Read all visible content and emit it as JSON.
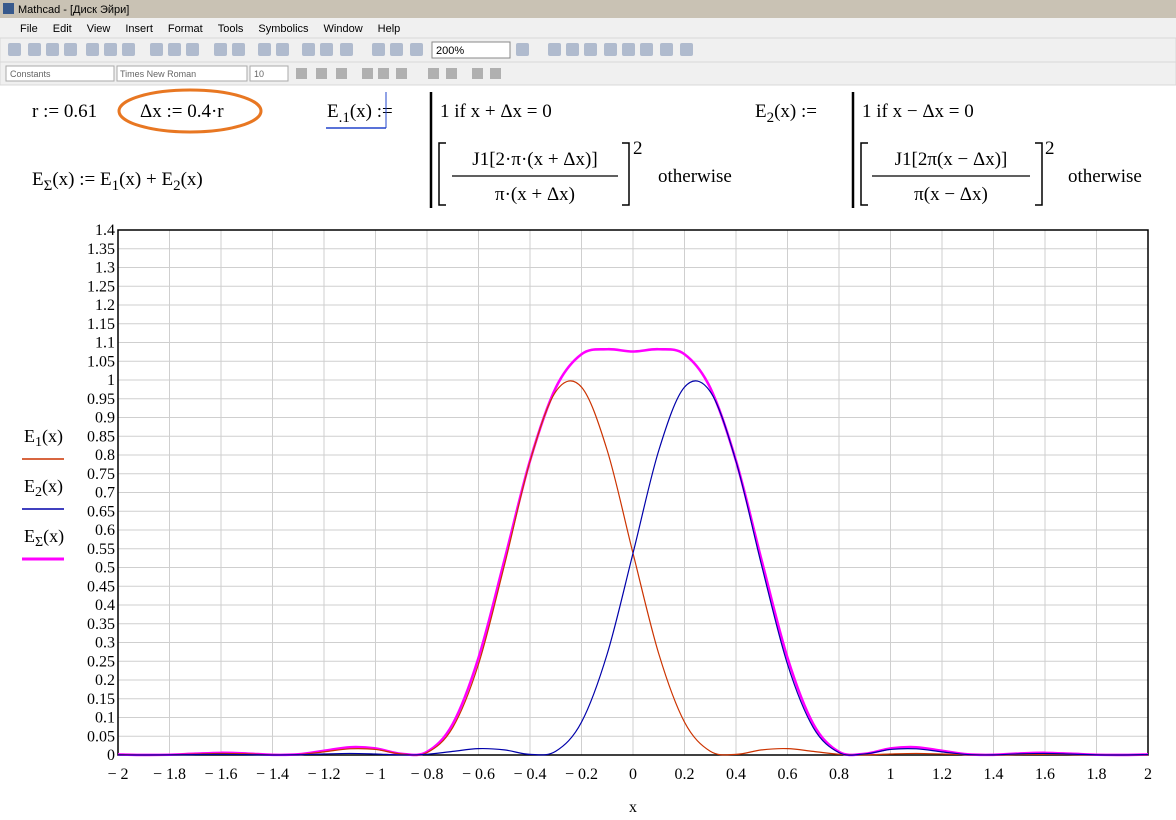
{
  "window": {
    "title": "Mathcad - [Диск Эйри]",
    "menu": [
      "File",
      "Edit",
      "View",
      "Insert",
      "Format",
      "Tools",
      "Symbolics",
      "Window",
      "Help"
    ],
    "zoom": "200%",
    "style": "Constants",
    "font": "Times New Roman",
    "size": "10"
  },
  "worksheet": {
    "r_def": "r := 0.61",
    "dx_def": "Δx := 0.4·r",
    "esum_def": [
      "E",
      "Σ",
      "(x) := E",
      "1",
      "(x) + E",
      "2",
      "(x)"
    ],
    "e1_def": [
      "E",
      ".1",
      "(x) :="
    ],
    "e1_case": "1  if  x + Δx = 0",
    "e1_num": "J1[2·π·(x + Δx)]",
    "e1_den": "π·(x + Δx)",
    "e1_exp": "2",
    "e1_otherwise": "otherwise",
    "e2_def": [
      "E",
      "2",
      "(x) :="
    ],
    "e2_case": "1  if  x − Δx = 0",
    "e2_num": "J1[2π(x − Δx)]",
    "e2_den": "π(x − Δx)",
    "e2_exp": "2",
    "e2_otherwise": "otherwise"
  },
  "chart_data": {
    "type": "line",
    "x_label": "x",
    "x": [
      -2,
      -1.9,
      -1.8,
      -1.7,
      -1.6,
      -1.5,
      -1.4,
      -1.3,
      -1.2,
      -1.1,
      -1,
      -0.9,
      -0.8,
      -0.7,
      -0.6,
      -0.5,
      -0.4,
      -0.3,
      -0.2,
      -0.1,
      0,
      0.1,
      0.2,
      0.3,
      0.4,
      0.5,
      0.6,
      0.7,
      0.8,
      0.9,
      1,
      1.1,
      1.2,
      1.3,
      1.4,
      1.5,
      1.6,
      1.7,
      1.8,
      1.9,
      2
    ],
    "series": [
      {
        "name": "E1(x)",
        "color": "#cc3300",
        "values": [
          0.0011,
          0.0001,
          0.0004,
          0.0024,
          0.0041,
          0.003,
          0.0004,
          0.0012,
          0.0084,
          0.0165,
          0.0148,
          0.0029,
          0.0064,
          0.0732,
          0.242,
          0.504,
          0.783,
          0.969,
          0.981,
          0.812,
          0.538,
          0.27,
          0.0877,
          0.0101,
          0.0017,
          0.0137,
          0.017,
          0.0096,
          0.0018,
          0.0002,
          0.0027,
          0.0042,
          0.0027,
          0.0006,
          0.0001,
          0.001,
          0.0016,
          0.0011,
          0.0003,
          0,
          0.0004
        ]
      },
      {
        "name": "E2(x)",
        "color": "#0000aa",
        "values": [
          0.0004,
          0,
          0.0003,
          0.0011,
          0.0016,
          0.001,
          0.0001,
          0.0006,
          0.0027,
          0.0042,
          0.0027,
          0.0002,
          0.0018,
          0.0096,
          0.017,
          0.0137,
          0.0017,
          0.0101,
          0.0877,
          0.27,
          0.538,
          0.812,
          0.981,
          0.969,
          0.783,
          0.504,
          0.242,
          0.0732,
          0.0064,
          0.0029,
          0.0148,
          0.0165,
          0.0084,
          0.0012,
          0.0004,
          0.003,
          0.0041,
          0.0024,
          0.0004,
          0.0001,
          0.0011
        ]
      },
      {
        "name": "EΣ(x)",
        "color": "#ff00ff",
        "values": [
          0.0015,
          0.0001,
          0.0007,
          0.0035,
          0.0057,
          0.004,
          0.0005,
          0.0018,
          0.0111,
          0.0207,
          0.0175,
          0.0031,
          0.0082,
          0.0828,
          0.259,
          0.5177,
          0.7847,
          0.9791,
          1.0687,
          1.082,
          1.076,
          1.082,
          1.0687,
          0.9791,
          0.7847,
          0.5177,
          0.259,
          0.0828,
          0.0082,
          0.0031,
          0.0175,
          0.0207,
          0.0111,
          0.0018,
          0.0005,
          0.004,
          0.0057,
          0.0035,
          0.0007,
          0.0001,
          0.0015
        ]
      }
    ],
    "xlim": [
      -2,
      2
    ],
    "xticks": [
      {
        "value": -2,
        "label": "− 2"
      },
      {
        "value": -1.8,
        "label": "− 1.8"
      },
      {
        "value": -1.6,
        "label": "− 1.6"
      },
      {
        "value": -1.4,
        "label": "− 1.4"
      },
      {
        "value": -1.2,
        "label": "− 1.2"
      },
      {
        "value": -1,
        "label": "− 1"
      },
      {
        "value": -0.8,
        "label": "− 0.8"
      },
      {
        "value": -0.6,
        "label": "− 0.6"
      },
      {
        "value": -0.4,
        "label": "− 0.4"
      },
      {
        "value": -0.2,
        "label": "− 0.2"
      },
      0,
      0.2,
      0.4,
      0.6,
      0.8,
      1,
      1.2,
      1.4,
      1.6,
      1.8,
      2
    ],
    "ylim": [
      0,
      1.4
    ],
    "yticks": [
      0,
      0.05,
      0.1,
      0.15,
      0.2,
      0.25,
      0.3,
      0.35,
      0.4,
      0.45,
      0.5,
      0.55,
      0.6,
      0.65,
      0.7,
      0.75,
      0.8,
      0.85,
      0.9,
      0.95,
      1,
      1.05,
      1.1,
      1.15,
      1.2,
      1.25,
      1.3,
      1.35,
      1.4
    ],
    "grid": true
  }
}
